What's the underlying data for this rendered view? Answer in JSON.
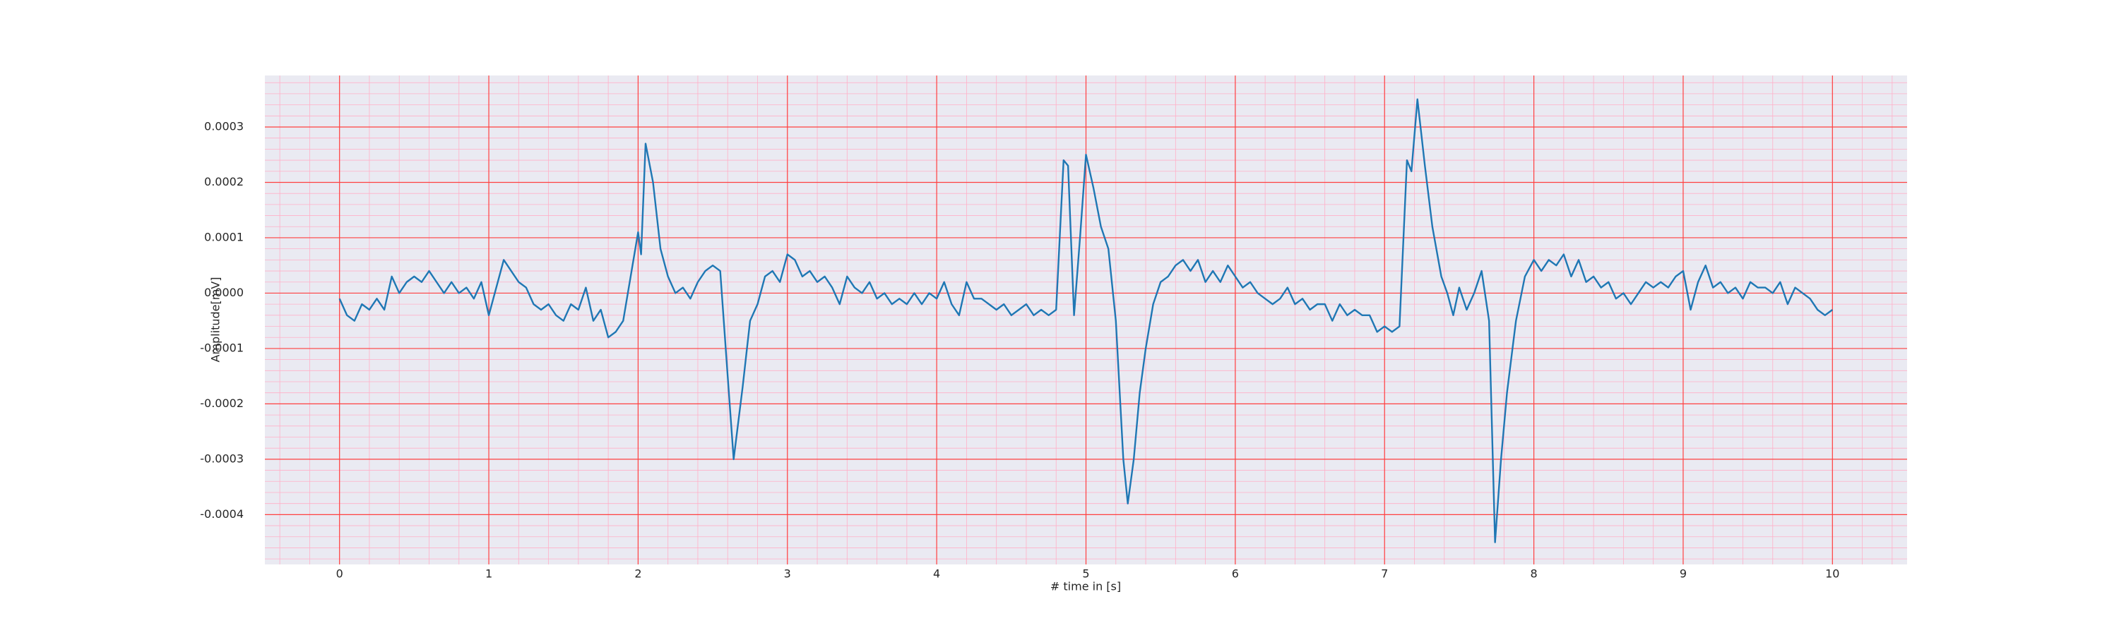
{
  "chart_data": {
    "type": "line",
    "xlabel": "# time in [s]",
    "ylabel": "Amplitude[mV]",
    "color": "#1f77b4",
    "background": "#eaeaf2",
    "grid": true,
    "grid_color": "#ff4040",
    "minor_grid": true,
    "minor_grid_color": "#ffb0c8",
    "minor_divisions": 5,
    "xlim": [
      -0.5,
      10.5
    ],
    "xticks": [
      0,
      1,
      2,
      3,
      4,
      5,
      6,
      7,
      8,
      9,
      10
    ],
    "ylim": [
      -0.00049,
      0.000393
    ],
    "yticks": [
      -0.0004,
      -0.0003,
      -0.0002,
      -0.0001,
      {
        "value": 0,
        "label": "0.0000"
      },
      0.0001,
      0.0002,
      0.0003
    ],
    "x": [
      0,
      0.05,
      0.1,
      0.15,
      0.2,
      0.25,
      0.3,
      0.35,
      0.4,
      0.45,
      0.5,
      0.55,
      0.6,
      0.65,
      0.7,
      0.75,
      0.8,
      0.85,
      0.9,
      0.95,
      1.0,
      1.05,
      1.1,
      1.15,
      1.2,
      1.25,
      1.3,
      1.35,
      1.4,
      1.45,
      1.5,
      1.55,
      1.6,
      1.65,
      1.7,
      1.75,
      1.8,
      1.85,
      1.9,
      1.95,
      2.0,
      2.02,
      2.05,
      2.1,
      2.15,
      2.2,
      2.25,
      2.3,
      2.35,
      2.4,
      2.45,
      2.5,
      2.55,
      2.6,
      2.64,
      2.7,
      2.75,
      2.8,
      2.85,
      2.9,
      2.95,
      3.0,
      3.05,
      3.1,
      3.15,
      3.2,
      3.25,
      3.3,
      3.35,
      3.4,
      3.45,
      3.5,
      3.55,
      3.6,
      3.65,
      3.7,
      3.75,
      3.8,
      3.85,
      3.9,
      3.95,
      4.0,
      4.05,
      4.1,
      4.15,
      4.2,
      4.25,
      4.3,
      4.35,
      4.4,
      4.45,
      4.5,
      4.55,
      4.6,
      4.65,
      4.7,
      4.75,
      4.8,
      4.85,
      4.88,
      4.92,
      4.96,
      5.0,
      5.05,
      5.1,
      5.15,
      5.2,
      5.25,
      5.28,
      5.32,
      5.36,
      5.4,
      5.45,
      5.5,
      5.55,
      5.6,
      5.65,
      5.7,
      5.75,
      5.8,
      5.85,
      5.9,
      5.95,
      6.0,
      6.05,
      6.1,
      6.15,
      6.2,
      6.25,
      6.3,
      6.35,
      6.4,
      6.45,
      6.5,
      6.55,
      6.6,
      6.65,
      6.7,
      6.75,
      6.8,
      6.85,
      6.9,
      6.95,
      7.0,
      7.05,
      7.1,
      7.15,
      7.18,
      7.22,
      7.27,
      7.32,
      7.38,
      7.42,
      7.46,
      7.5,
      7.55,
      7.6,
      7.65,
      7.7,
      7.74,
      7.78,
      7.82,
      7.88,
      7.94,
      8.0,
      8.05,
      8.1,
      8.15,
      8.2,
      8.25,
      8.3,
      8.35,
      8.4,
      8.45,
      8.5,
      8.55,
      8.6,
      8.65,
      8.7,
      8.75,
      8.8,
      8.85,
      8.9,
      8.95,
      9.0,
      9.05,
      9.1,
      9.15,
      9.2,
      9.25,
      9.3,
      9.35,
      9.4,
      9.45,
      9.5,
      9.55,
      9.6,
      9.65,
      9.7,
      9.75,
      9.8,
      9.85,
      9.9,
      9.95,
      10.0
    ],
    "values": [
      -1e-05,
      -4e-05,
      -5e-05,
      -2e-05,
      -3e-05,
      -1e-05,
      -3e-05,
      3e-05,
      0,
      2e-05,
      3e-05,
      2e-05,
      4e-05,
      2e-05,
      0,
      2e-05,
      0,
      1e-05,
      -1e-05,
      2e-05,
      -4e-05,
      1e-05,
      6e-05,
      4e-05,
      2e-05,
      1e-05,
      -2e-05,
      -3e-05,
      -2e-05,
      -4e-05,
      -5e-05,
      -2e-05,
      -3e-05,
      1e-05,
      -5e-05,
      -3e-05,
      -8e-05,
      -7e-05,
      -5e-05,
      3e-05,
      0.00011,
      7e-05,
      0.00027,
      0.0002,
      8e-05,
      3e-05,
      0,
      1e-05,
      -1e-05,
      2e-05,
      4e-05,
      5e-05,
      4e-05,
      -0.00015,
      -0.0003,
      -0.00017,
      -5e-05,
      -2e-05,
      3e-05,
      4e-05,
      2e-05,
      7e-05,
      6e-05,
      3e-05,
      4e-05,
      2e-05,
      3e-05,
      1e-05,
      -2e-05,
      3e-05,
      1e-05,
      0,
      2e-05,
      -1e-05,
      0,
      -2e-05,
      -1e-05,
      -2e-05,
      0,
      -2e-05,
      0,
      -1e-05,
      2e-05,
      -2e-05,
      -4e-05,
      2e-05,
      -1e-05,
      -1e-05,
      -2e-05,
      -3e-05,
      -2e-05,
      -4e-05,
      -3e-05,
      -2e-05,
      -4e-05,
      -3e-05,
      -4e-05,
      -3e-05,
      0.00024,
      0.00023,
      -4e-05,
      0.0001,
      0.00025,
      0.00019,
      0.00012,
      8e-05,
      -5e-05,
      -0.0003,
      -0.00038,
      -0.0003,
      -0.00018,
      -0.0001,
      -2e-05,
      2e-05,
      3e-05,
      5e-05,
      6e-05,
      4e-05,
      6e-05,
      2e-05,
      4e-05,
      2e-05,
      5e-05,
      3e-05,
      1e-05,
      2e-05,
      0,
      -1e-05,
      -2e-05,
      -1e-05,
      1e-05,
      -2e-05,
      -1e-05,
      -3e-05,
      -2e-05,
      -2e-05,
      -5e-05,
      -2e-05,
      -4e-05,
      -3e-05,
      -4e-05,
      -4e-05,
      -7e-05,
      -6e-05,
      -7e-05,
      -6e-05,
      0.00024,
      0.00022,
      0.00035,
      0.00023,
      0.00012,
      3e-05,
      0,
      -4e-05,
      1e-05,
      -3e-05,
      0,
      4e-05,
      -5e-05,
      -0.00045,
      -0.0003,
      -0.00018,
      -5e-05,
      3e-05,
      6e-05,
      4e-05,
      6e-05,
      5e-05,
      7e-05,
      3e-05,
      6e-05,
      2e-05,
      3e-05,
      1e-05,
      2e-05,
      -1e-05,
      0,
      -2e-05,
      0,
      2e-05,
      1e-05,
      2e-05,
      1e-05,
      3e-05,
      4e-05,
      -3e-05,
      2e-05,
      5e-05,
      1e-05,
      2e-05,
      0,
      1e-05,
      -1e-05,
      2e-05,
      1e-05,
      1e-05,
      0,
      2e-05,
      -2e-05,
      1e-05,
      0,
      -1e-05,
      -3e-05,
      -4e-05,
      -3e-05
    ]
  }
}
